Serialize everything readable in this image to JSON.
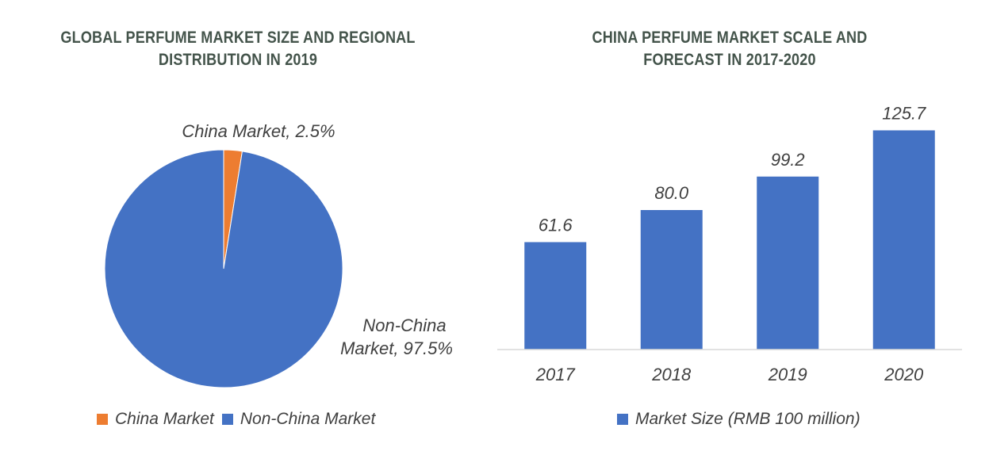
{
  "chart_data": [
    {
      "type": "pie",
      "title_lines": [
        "GLOBAL PERFUME MARKET SIZE AND REGIONAL",
        "DISTRIBUTION IN 2019"
      ],
      "slices": [
        {
          "name": "China Market",
          "value": 2.5,
          "color": "#ed7d31",
          "label": "China Market, 2.5%"
        },
        {
          "name": "Non-China Market",
          "value": 97.5,
          "color": "#4472c4",
          "label_lines": [
            "Non-China",
            "Market, 97.5%"
          ]
        }
      ],
      "legend": [
        "China Market",
        "Non-China Market"
      ],
      "legend_position": "bottom"
    },
    {
      "type": "bar",
      "title_lines": [
        "CHINA PERFUME MARKET SCALE AND",
        "FORECAST IN 2017-2020"
      ],
      "categories": [
        "2017",
        "2018",
        "2019",
        "2020"
      ],
      "series": [
        {
          "name": "Market Size (RMB 100 million)",
          "values": [
            61.6,
            80.0,
            99.2,
            125.7
          ],
          "value_labels": [
            "61.6",
            "80.0",
            "99.2",
            "125.7"
          ],
          "color": "#4472c4"
        }
      ],
      "ylim": [
        0,
        130
      ],
      "grid": false,
      "legend_position": "bottom"
    }
  ]
}
